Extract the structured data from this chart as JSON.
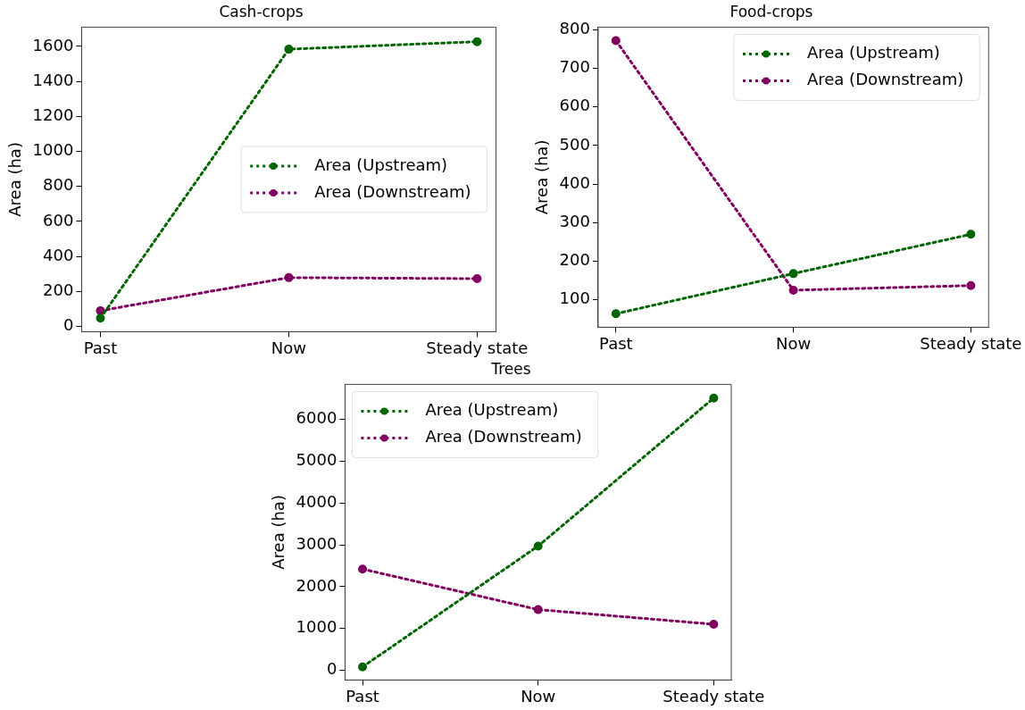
{
  "chart_data": [
    {
      "type": "line",
      "title": "Cash-crops",
      "ylabel": "Area (ha)",
      "categories": [
        "Past",
        "Now",
        "Steady state"
      ],
      "series": [
        {
          "name": "Area (Upstream)",
          "color": "#006400",
          "values": [
            47,
            1584,
            1627
          ]
        },
        {
          "name": "Area (Downstream)",
          "color": "#800060",
          "values": [
            90,
            279,
            273
          ]
        }
      ],
      "ylim": [
        -30,
        1710
      ],
      "yticks": [
        0,
        200,
        400,
        600,
        800,
        1000,
        1200,
        1400,
        1600
      ],
      "grid": false,
      "legend": "right",
      "marker": "circle",
      "line_style": "dotted"
    },
    {
      "type": "line",
      "title": "Food-crops",
      "ylabel": "Area (ha)",
      "categories": [
        "Past",
        "Now",
        "Steady state"
      ],
      "series": [
        {
          "name": "Area (Upstream)",
          "color": "#006400",
          "values": [
            64,
            168,
            270
          ]
        },
        {
          "name": "Area (Downstream)",
          "color": "#800060",
          "values": [
            772,
            125,
            137
          ]
        }
      ],
      "ylim": [
        29,
        807
      ],
      "yticks": [
        100,
        200,
        300,
        400,
        500,
        600,
        700,
        800
      ],
      "grid": false,
      "legend": "top right",
      "marker": "circle",
      "line_style": "dotted"
    },
    {
      "type": "line",
      "title": "Trees",
      "ylabel": "Area (ha)",
      "categories": [
        "Past",
        "Now",
        "Steady state"
      ],
      "series": [
        {
          "name": "Area (Upstream)",
          "color": "#006400",
          "values": [
            80,
            2970,
            6510
          ]
        },
        {
          "name": "Area (Downstream)",
          "color": "#800060",
          "values": [
            2420,
            1450,
            1100
          ]
        }
      ],
      "ylim": [
        -233,
        6837
      ],
      "yticks": [
        0,
        1000,
        2000,
        3000,
        4000,
        5000,
        6000
      ],
      "grid": false,
      "legend": "top left",
      "marker": "circle",
      "line_style": "dotted"
    }
  ]
}
